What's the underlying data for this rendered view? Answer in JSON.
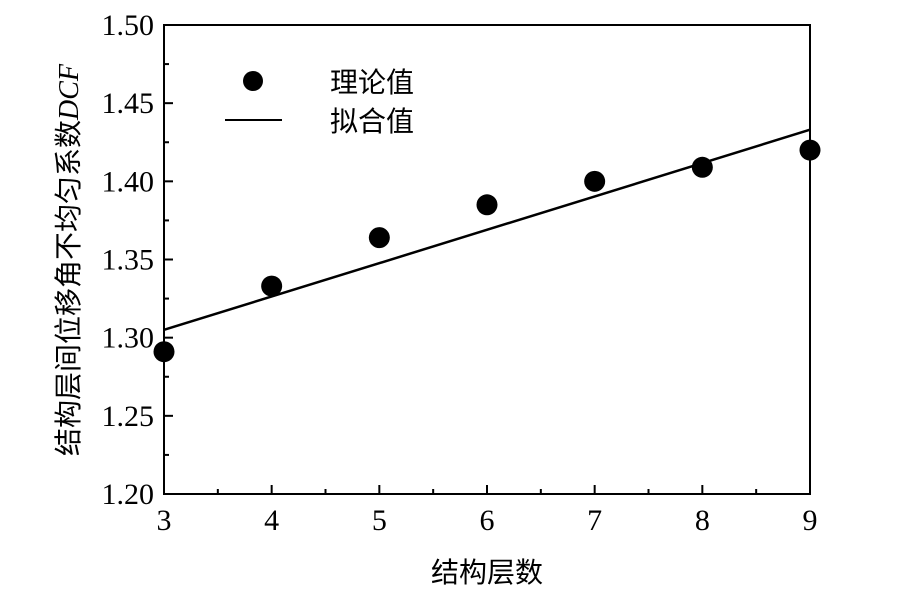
{
  "chart_data": {
    "type": "scatter",
    "xlabel": "结构层数",
    "ylabel": {
      "text": "结构层间位移角不均匀系数",
      "symbol": "DCF"
    },
    "xlim": [
      3,
      9
    ],
    "ylim": [
      1.2,
      1.5
    ],
    "x_ticks": [
      "3",
      "4",
      "5",
      "6",
      "7",
      "8",
      "9"
    ],
    "y_ticks": [
      "1.20",
      "1.25",
      "1.30",
      "1.35",
      "1.40",
      "1.45",
      "1.50"
    ],
    "grid": false,
    "legend_position": "top-left",
    "series": [
      {
        "name": "理论值",
        "kind": "scatter",
        "color": "#000000",
        "x": [
          3,
          4,
          5,
          6,
          7,
          8,
          9
        ],
        "y": [
          1.291,
          1.333,
          1.364,
          1.385,
          1.4,
          1.409,
          1.42
        ]
      },
      {
        "name": "拟合值",
        "kind": "line",
        "color": "#000000",
        "x": [
          3,
          9
        ],
        "y": [
          1.305,
          1.433
        ]
      }
    ]
  }
}
